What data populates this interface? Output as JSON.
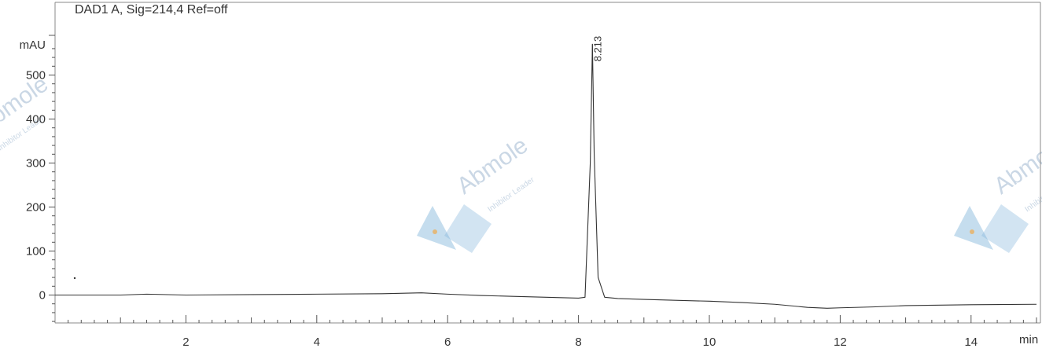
{
  "chart_data": {
    "type": "line",
    "title": "DAD1 A, Sig=214,4 Ref=off",
    "xlabel": "min",
    "ylabel": "mAU",
    "xlim": [
      0,
      15
    ],
    "ylim": [
      -65,
      590
    ],
    "xticks": [
      2,
      4,
      6,
      8,
      10,
      12,
      14
    ],
    "yticks": [
      0,
      100,
      200,
      300,
      400,
      500
    ],
    "grid": false,
    "peaks": [
      {
        "time": 8.213,
        "label": "8.213",
        "height": 570
      }
    ],
    "series": [
      {
        "x": [
          0,
          1,
          1.4,
          2,
          3,
          4,
          5,
          5.6,
          6,
          6.5,
          7,
          7.5,
          8,
          8.1,
          8.18,
          8.213,
          8.24,
          8.3,
          8.4,
          8.6,
          9,
          10,
          10.5,
          11,
          11.5,
          11.8,
          12,
          12.5,
          13,
          14,
          15
        ],
        "y": [
          0,
          0,
          2,
          0,
          1,
          2,
          3,
          5,
          2,
          -1,
          -3,
          -5,
          -7,
          -5,
          300,
          570,
          320,
          40,
          -5,
          -8,
          -10,
          -14,
          -17,
          -21,
          -28,
          -30,
          -29,
          -27,
          -24,
          -22,
          -21
        ]
      }
    ]
  },
  "watermark": {
    "brand": "Abmole",
    "tagline": "Inhibitor Leader",
    "colors": {
      "blue": "#7fb3d9",
      "orange": "#f0a94a"
    }
  },
  "colors": {
    "trace": "#333333",
    "axis": "#555555",
    "frame": "#888888"
  }
}
